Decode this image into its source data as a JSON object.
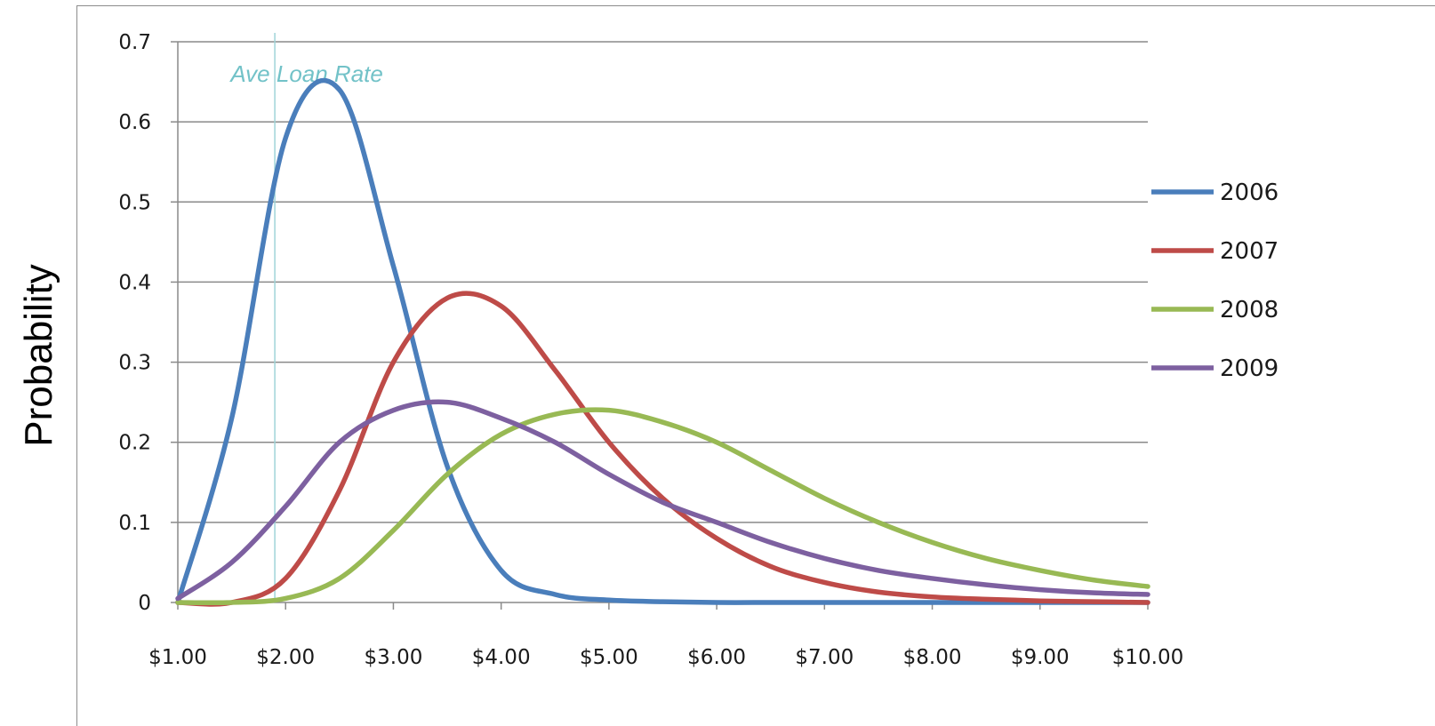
{
  "chart_data": {
    "type": "line",
    "ylabel": "Probability",
    "xlabel": "",
    "x_tick_labels": [
      "$1.00",
      "$2.00",
      "$3.00",
      "$4.00",
      "$5.00",
      "$6.00",
      "$7.00",
      "$8.00",
      "$9.00",
      "$10.00"
    ],
    "y_tick_labels": [
      "0",
      "0.1",
      "0.2",
      "0.3",
      "0.4",
      "0.5",
      "0.6",
      "0.7"
    ],
    "xlim": [
      1,
      10
    ],
    "ylim": [
      0,
      0.7
    ],
    "grid": "horizontal",
    "legend_position": "right",
    "x": [
      1.0,
      1.5,
      2.0,
      2.5,
      3.0,
      3.5,
      4.0,
      4.5,
      5.0,
      5.5,
      6.0,
      6.5,
      7.0,
      7.5,
      8.0,
      8.5,
      9.0,
      9.5,
      10.0
    ],
    "series": [
      {
        "name": "2006",
        "color": "#4a7ebb",
        "values": [
          0.0,
          0.23,
          0.58,
          0.64,
          0.42,
          0.17,
          0.04,
          0.01,
          0.003,
          0.001,
          0,
          0,
          0,
          0,
          0,
          0,
          0,
          0,
          0
        ]
      },
      {
        "name": "2007",
        "color": "#be4b48",
        "values": [
          0.0,
          0.0,
          0.03,
          0.14,
          0.3,
          0.38,
          0.37,
          0.29,
          0.2,
          0.13,
          0.08,
          0.045,
          0.025,
          0.013,
          0.007,
          0.004,
          0.002,
          0.001,
          0.0
        ]
      },
      {
        "name": "2008",
        "color": "#98b954",
        "values": [
          0.0,
          0.0,
          0.005,
          0.03,
          0.09,
          0.16,
          0.21,
          0.235,
          0.24,
          0.225,
          0.2,
          0.165,
          0.13,
          0.1,
          0.075,
          0.055,
          0.04,
          0.028,
          0.02
        ]
      },
      {
        "name": "2009",
        "color": "#7d60a0",
        "values": [
          0.005,
          0.05,
          0.12,
          0.2,
          0.24,
          0.25,
          0.23,
          0.2,
          0.16,
          0.125,
          0.1,
          0.075,
          0.055,
          0.04,
          0.03,
          0.022,
          0.016,
          0.012,
          0.01
        ]
      }
    ],
    "annotations": [
      {
        "text": "Ave Loan Rate",
        "x": 1.9,
        "type": "vertical-line",
        "color": "#9fd4d8"
      }
    ]
  }
}
